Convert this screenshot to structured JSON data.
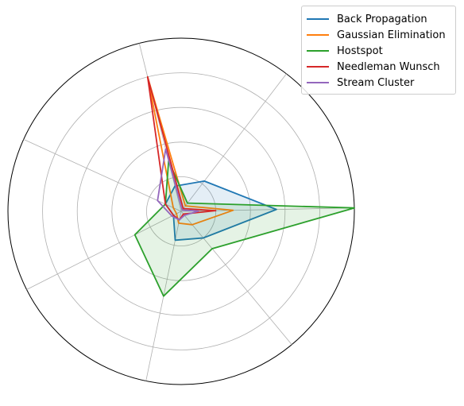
{
  "chart_data": {
    "type": "radar",
    "axes": [
      "",
      "",
      "",
      "",
      "",
      "",
      ""
    ],
    "rmax": 1.0,
    "rings": [
      0.2,
      0.4,
      0.6,
      0.8,
      1.0
    ],
    "grid": true,
    "legend_position": "top-right",
    "series": [
      {
        "name": "Back Propagation",
        "color": "#1f77b4",
        "fill": true,
        "values": [
          0.15,
          0.22,
          0.55,
          0.2,
          0.17,
          0.05,
          0.1
        ]
      },
      {
        "name": "Gaussian Elimination",
        "color": "#ff7f0e",
        "fill": false,
        "values": [
          0.8,
          0.04,
          0.3,
          0.1,
          0.07,
          0.03,
          0.05
        ]
      },
      {
        "name": "Hostspot",
        "color": "#2ca02c",
        "fill": true,
        "values": [
          0.3,
          0.06,
          1.0,
          0.28,
          0.5,
          0.3,
          0.1
        ]
      },
      {
        "name": "Needleman Wunsch",
        "color": "#d62728",
        "fill": false,
        "values": [
          0.8,
          0.02,
          0.2,
          0.02,
          0.05,
          0.05,
          0.1
        ]
      },
      {
        "name": "Stream Cluster",
        "color": "#9467bd",
        "fill": false,
        "values": [
          0.37,
          0.01,
          0.1,
          0.03,
          0.05,
          0.06,
          0.15
        ]
      }
    ]
  }
}
